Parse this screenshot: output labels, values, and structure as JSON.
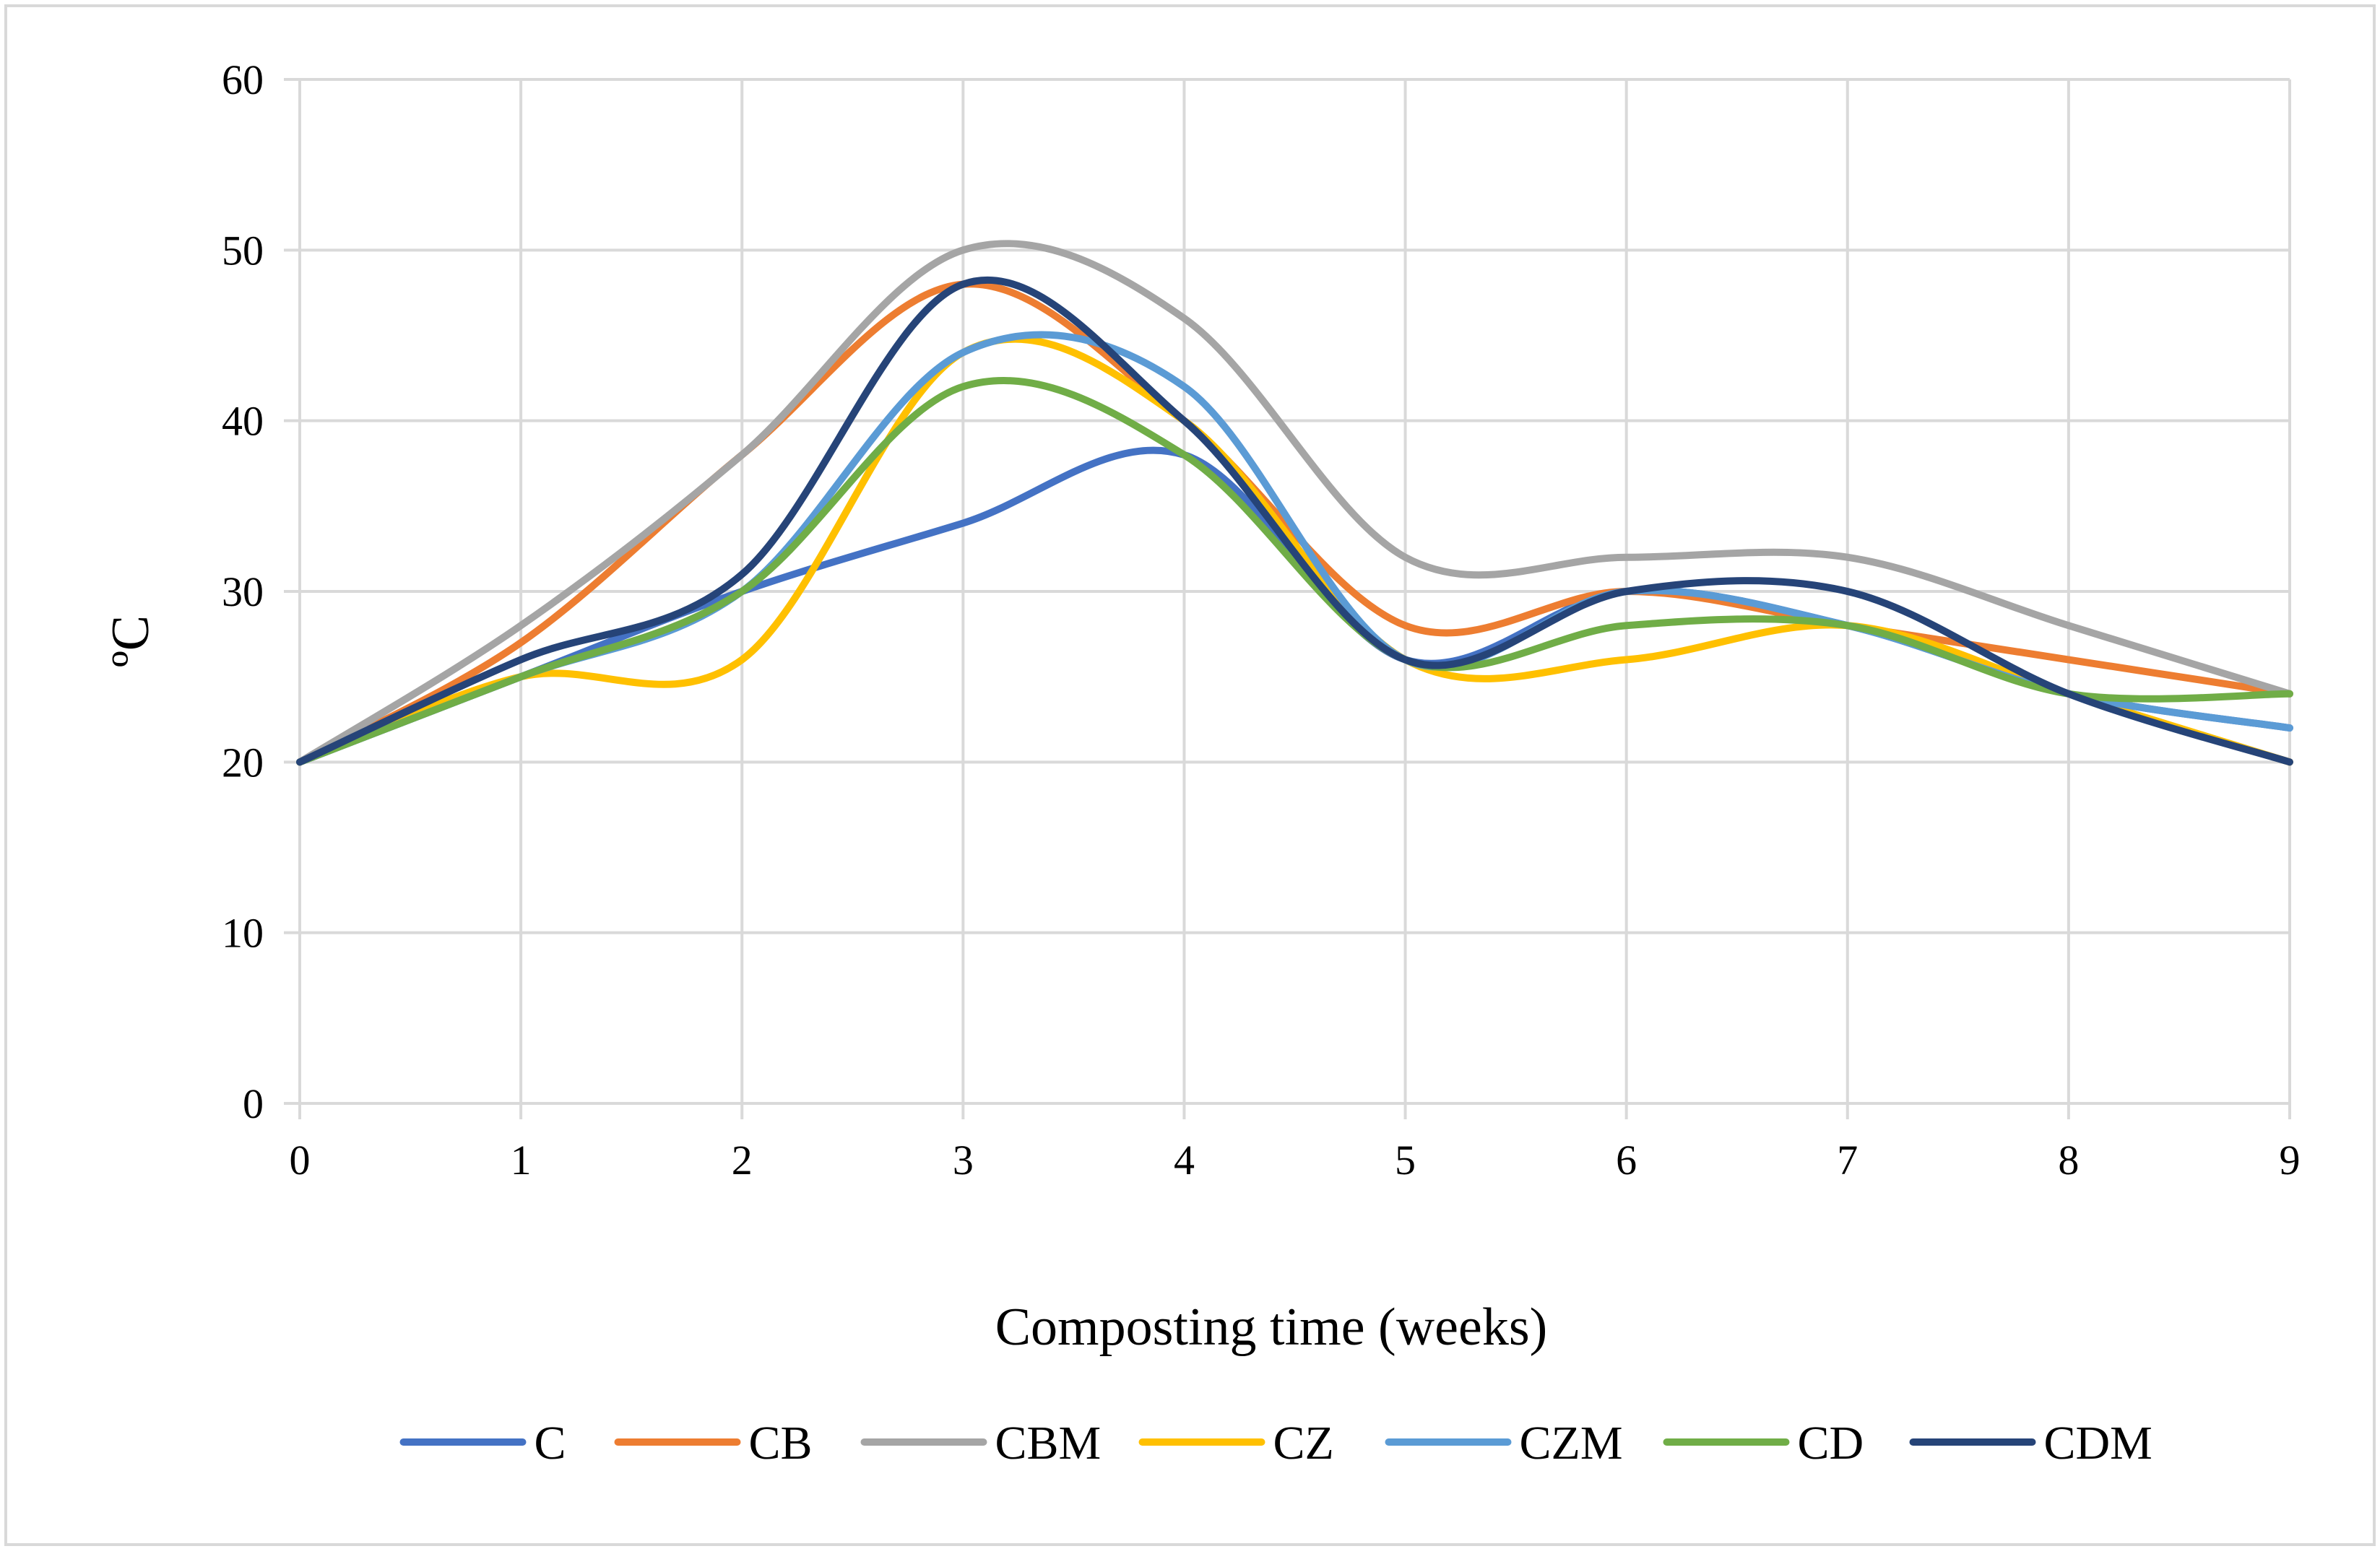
{
  "chart_data": {
    "type": "line",
    "title": "",
    "xlabel": "Composting time (weeks)",
    "ylabel": "ºC",
    "x": [
      0,
      1,
      2,
      3,
      4,
      5,
      6,
      7,
      8,
      9
    ],
    "xlim": [
      0,
      9
    ],
    "ylim": [
      0,
      60
    ],
    "yticks": [
      0,
      10,
      20,
      30,
      40,
      50,
      60
    ],
    "xticks": [
      0,
      1,
      2,
      3,
      4,
      5,
      6,
      7,
      8,
      9
    ],
    "grid": true,
    "smooth": true,
    "legend_position": "bottom",
    "series": [
      {
        "name": "C",
        "color": "#4472C4",
        "values": [
          20,
          25,
          30,
          34,
          38,
          26,
          30,
          28,
          24,
          22
        ]
      },
      {
        "name": "CB",
        "color": "#ED7D31",
        "values": [
          20,
          27,
          38,
          48,
          40,
          28,
          30,
          28,
          26,
          24
        ]
      },
      {
        "name": "CBM",
        "color": "#A5A5A5",
        "values": [
          20,
          28,
          38,
          50,
          46,
          32,
          32,
          32,
          28,
          24
        ]
      },
      {
        "name": "CZ",
        "color": "#FFC000",
        "values": [
          20,
          25,
          26,
          44,
          40,
          26,
          26,
          28,
          24,
          20
        ]
      },
      {
        "name": "CZM",
        "color": "#5B9BD5",
        "values": [
          20,
          25,
          30,
          44,
          42,
          26,
          30,
          28,
          24,
          22
        ]
      },
      {
        "name": "CD",
        "color": "#70AD47",
        "values": [
          20,
          25,
          30,
          42,
          38,
          26,
          28,
          28,
          24,
          24
        ]
      },
      {
        "name": "CDM",
        "color": "#264478",
        "values": [
          20,
          26,
          31,
          48,
          40,
          26,
          30,
          30,
          24,
          20
        ]
      }
    ]
  }
}
